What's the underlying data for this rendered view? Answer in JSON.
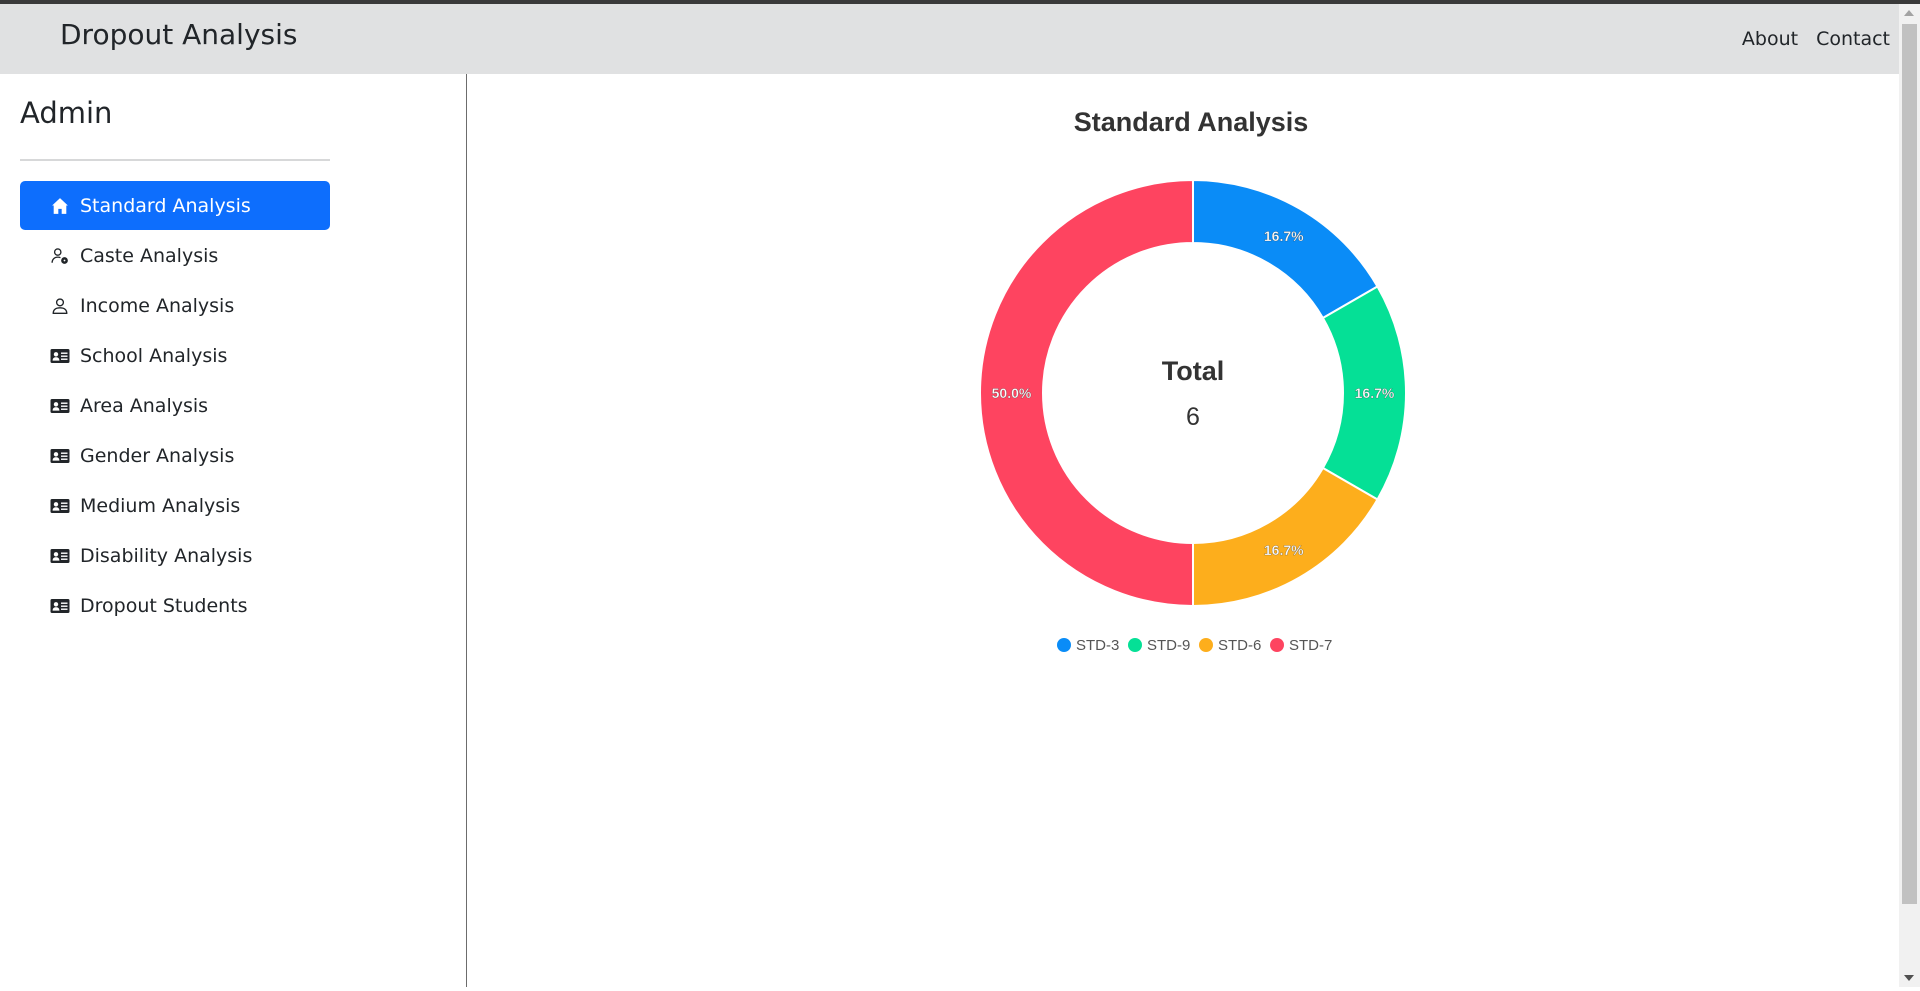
{
  "navbar": {
    "brand": "Dropout Analysis",
    "links": [
      {
        "label": "About"
      },
      {
        "label": "Contact"
      }
    ]
  },
  "sidebar": {
    "title": "Admin",
    "items": [
      {
        "label": "Standard Analysis",
        "icon": "house-icon",
        "active": true
      },
      {
        "label": "Caste Analysis",
        "icon": "person-gear-icon",
        "active": false
      },
      {
        "label": "Income Analysis",
        "icon": "person-icon",
        "active": false
      },
      {
        "label": "School Analysis",
        "icon": "id-card-icon",
        "active": false
      },
      {
        "label": "Area Analysis",
        "icon": "id-card-icon",
        "active": false
      },
      {
        "label": "Gender Analysis",
        "icon": "id-card-icon",
        "active": false
      },
      {
        "label": "Medium Analysis",
        "icon": "id-card-icon",
        "active": false
      },
      {
        "label": "Disability Analysis",
        "icon": "id-card-icon",
        "active": false
      },
      {
        "label": "Dropout Students",
        "icon": "id-card-icon",
        "active": false
      }
    ]
  },
  "colors": {
    "accent": "#0d6efd",
    "navbar_bg": "#e0e1e2"
  },
  "chart_data": {
    "type": "pie",
    "title": "Standard Analysis",
    "center_label": "Total",
    "center_value": "6",
    "legend_position": "bottom",
    "slices": [
      {
        "label": "STD-3",
        "value": 1,
        "percent_label": "16.7%",
        "color": "#0a8cf7"
      },
      {
        "label": "STD-9",
        "value": 1,
        "percent_label": "16.7%",
        "color": "#05e096"
      },
      {
        "label": "STD-6",
        "value": 1,
        "percent_label": "16.7%",
        "color": "#fdae1c"
      },
      {
        "label": "STD-7",
        "value": 3,
        "percent_label": "50.0%",
        "color": "#fe4460"
      }
    ]
  }
}
